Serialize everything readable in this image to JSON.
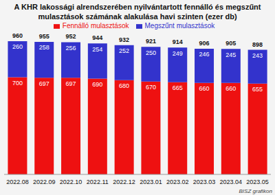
{
  "chart_data": {
    "type": "bar",
    "title": "A KHR lakossági alrendszerében nyilvántartott fennálló és megszűnt mulasztások számának alakulása havi szinten (ezer db)",
    "categories": [
      "2022.08",
      "2022.09",
      "2022.10",
      "2022.11",
      "2022.12",
      "2023.01",
      "2023.02",
      "2023.03",
      "2023.04",
      "2023.05"
    ],
    "series": [
      {
        "name": "Fennálló mulasztások",
        "color": "#ee1111",
        "values": [
          700,
          697,
          697,
          690,
          680,
          670,
          665,
          660,
          660,
          655
        ]
      },
      {
        "name": "Megszűnt mulasztások",
        "color": "#3333cc",
        "values": [
          260,
          258,
          256,
          254,
          252,
          250,
          249,
          246,
          245,
          243
        ]
      }
    ],
    "totals": [
      960,
      955,
      952,
      944,
      932,
      921,
      914,
      906,
      905,
      898
    ],
    "stacked": true,
    "data_labels": true,
    "tick_labels": "x",
    "grid": false,
    "legend": "top",
    "ylim": [
      0,
      1000
    ],
    "source": "BISZ grafikon"
  }
}
